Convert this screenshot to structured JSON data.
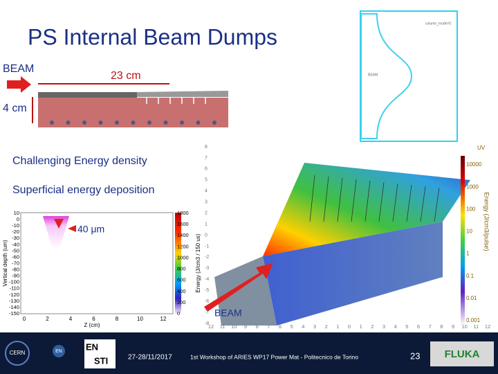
{
  "title": "PS Internal Beam Dumps",
  "dump": {
    "beam": "BEAM",
    "length": "23 cm",
    "height": "4 cm"
  },
  "profile": {
    "label": "column_mode=0",
    "beam": "BEAM"
  },
  "bullets": [
    "Challenging Energy density",
    "Superficial energy deposition"
  ],
  "heatmap": {
    "annotation": "40 μm",
    "ylabel": "Vertical depth (um)",
    "xlabel": "Z (cm)",
    "cbar_label": "Energy (J/cm3 / 150 us)",
    "yticks": [
      10,
      0,
      -10,
      -20,
      -30,
      -40,
      -50,
      -60,
      -70,
      -80,
      -90,
      -100,
      -110,
      -120,
      -130,
      -140,
      -150
    ],
    "xticks": [
      0,
      2,
      4,
      6,
      8,
      10,
      12
    ],
    "cbar_ticks": [
      1800,
      1600,
      1400,
      1200,
      1000,
      800,
      600,
      400,
      200,
      0
    ]
  },
  "model": {
    "beam": "BEAM",
    "corner": "UV",
    "cbar_label": "Energy (J/cm3/pulse)",
    "cbar_ticks": [
      "10000",
      "1000",
      "100",
      "10",
      "1",
      "0.1",
      "0.01",
      "0.001"
    ],
    "left_ticks": [
      8,
      7,
      6,
      5,
      4,
      3,
      2,
      1,
      0,
      -1,
      -2,
      -3,
      -4,
      -5,
      -6,
      -7,
      -8
    ],
    "bottom_ticks": [
      12,
      11,
      10,
      9,
      8,
      7,
      6,
      5,
      4,
      3,
      2,
      1,
      0,
      1,
      2,
      3,
      4,
      5,
      6,
      7,
      8,
      9,
      10,
      11,
      12
    ]
  },
  "footer": {
    "date": "27-28/11/2017",
    "event": "1st Workshop of ARIES WP17 Power Mat - Politecnico de Torino",
    "page": "23",
    "logos": [
      "CERN",
      "EN",
      "EN",
      "STI",
      "FLUKA"
    ]
  }
}
